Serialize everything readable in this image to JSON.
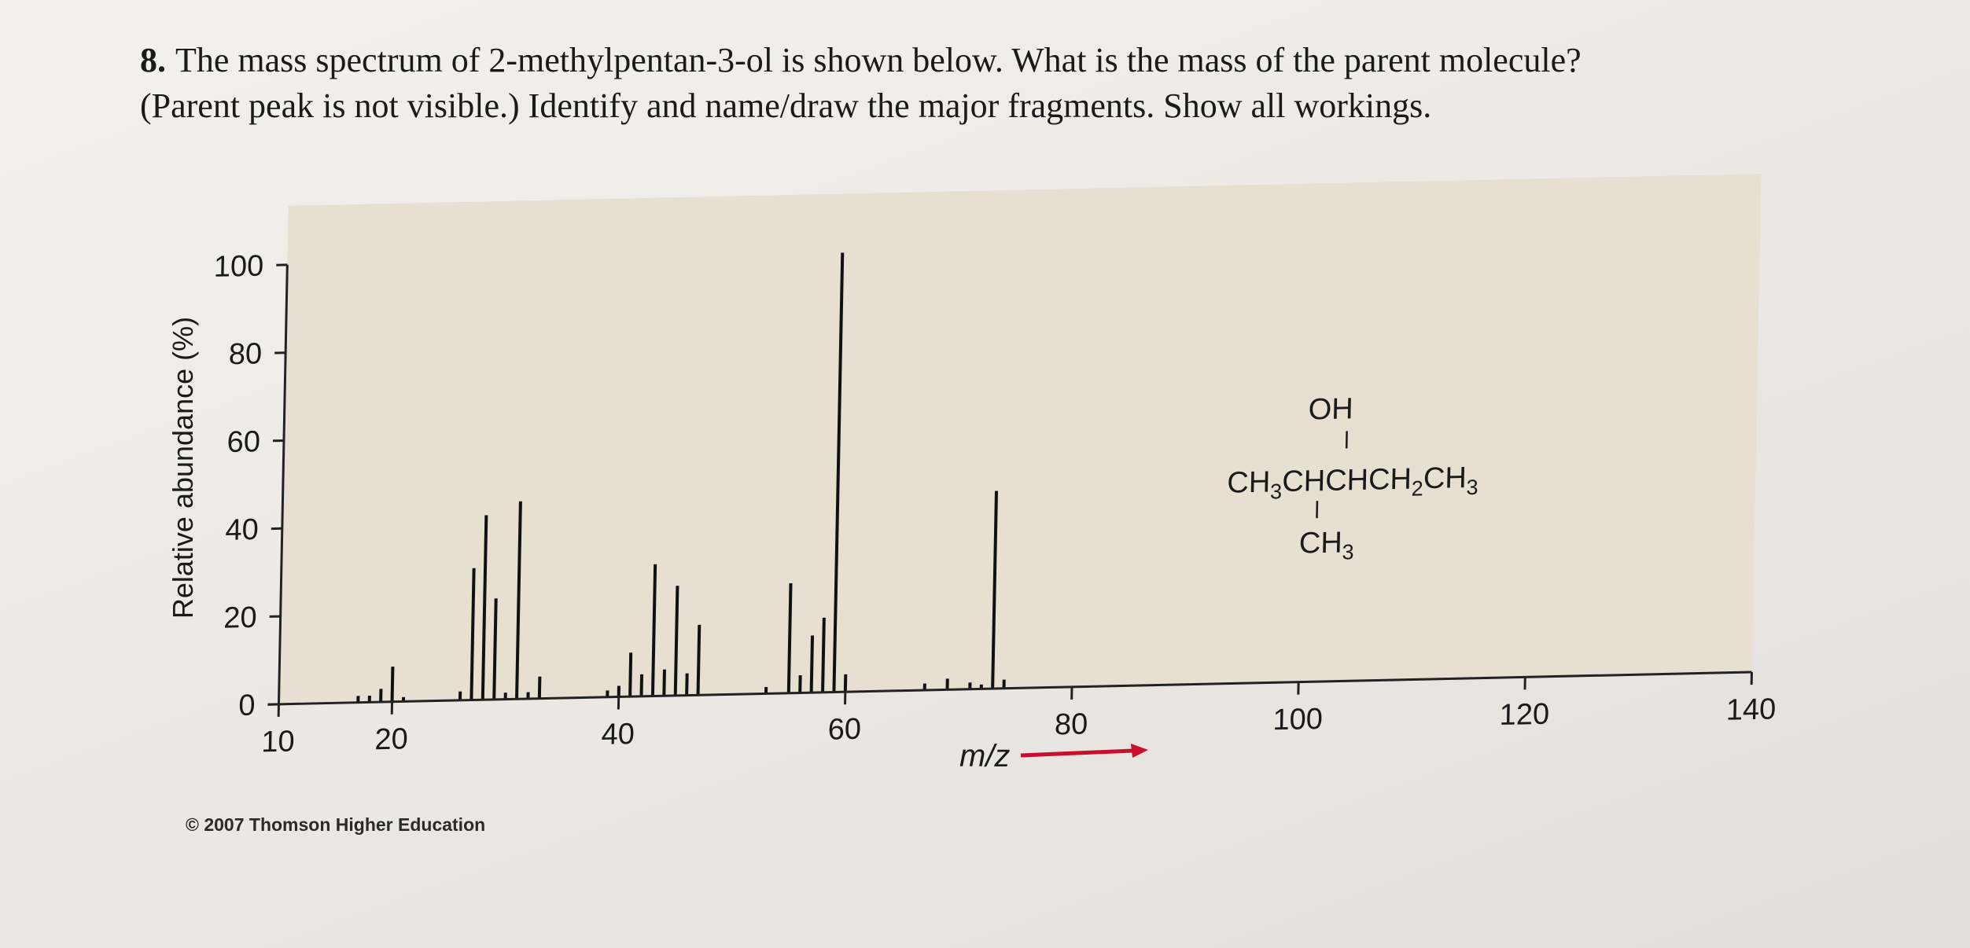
{
  "question": {
    "number": "8.",
    "line1": "The mass spectrum of 2-methylpentan-3-ol is shown below.  What is the mass of the parent molecule?",
    "line2": "(Parent peak is not visible.) Identify and name/draw the major fragments. Show all workings."
  },
  "structure": {
    "oh": "OH",
    "chain_prefix": "CH",
    "chain_sub1": "3",
    "chain_mid": "CHCHCH",
    "chain_sub2": "2",
    "chain_end": "CH",
    "chain_sub3": "3",
    "methyl": "CH",
    "methyl_sub": "3"
  },
  "copyright": "© 2007 Thomson Higher Education",
  "colors": {
    "plot_bg": "#e7dfd2",
    "axis": "#222222",
    "arrow": "#c8102e"
  },
  "chart_data": {
    "type": "bar",
    "title": "",
    "xlabel": "m/z",
    "ylabel": "Relative abundance (%)",
    "xlim": [
      10,
      140
    ],
    "ylim": [
      0,
      100
    ],
    "x_ticks": [
      10,
      20,
      40,
      60,
      80,
      100,
      120,
      140
    ],
    "y_ticks": [
      0,
      20,
      40,
      60,
      80,
      100
    ],
    "grid": false,
    "peaks": [
      {
        "x": 17,
        "y": 1.5
      },
      {
        "x": 18,
        "y": 1.5
      },
      {
        "x": 19,
        "y": 3
      },
      {
        "x": 20,
        "y": 8
      },
      {
        "x": 21,
        "y": 1
      },
      {
        "x": 26,
        "y": 2
      },
      {
        "x": 27,
        "y": 30
      },
      {
        "x": 28,
        "y": 42
      },
      {
        "x": 29,
        "y": 23
      },
      {
        "x": 30,
        "y": 1.5
      },
      {
        "x": 31,
        "y": 45
      },
      {
        "x": 32,
        "y": 1.5
      },
      {
        "x": 33,
        "y": 5
      },
      {
        "x": 39,
        "y": 1.5
      },
      {
        "x": 40,
        "y": 2.5
      },
      {
        "x": 41,
        "y": 10
      },
      {
        "x": 42,
        "y": 5
      },
      {
        "x": 43,
        "y": 30
      },
      {
        "x": 44,
        "y": 6
      },
      {
        "x": 45,
        "y": 25
      },
      {
        "x": 46,
        "y": 5
      },
      {
        "x": 47,
        "y": 16
      },
      {
        "x": 53,
        "y": 1.5
      },
      {
        "x": 55,
        "y": 25
      },
      {
        "x": 56,
        "y": 4
      },
      {
        "x": 57,
        "y": 13
      },
      {
        "x": 58,
        "y": 17
      },
      {
        "x": 59,
        "y": 100
      },
      {
        "x": 60,
        "y": 4
      },
      {
        "x": 67,
        "y": 1.5
      },
      {
        "x": 69,
        "y": 2.5
      },
      {
        "x": 71,
        "y": 1.5
      },
      {
        "x": 72,
        "y": 1
      },
      {
        "x": 73,
        "y": 45
      },
      {
        "x": 74,
        "y": 2
      }
    ]
  }
}
